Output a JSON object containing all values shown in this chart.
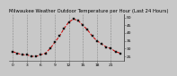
{
  "title": "Milwaukee Weather Outdoor Temperature per Hour (Last 24 Hours)",
  "hours": [
    0,
    1,
    2,
    3,
    4,
    5,
    6,
    7,
    8,
    9,
    10,
    11,
    12,
    13,
    14,
    15,
    16,
    17,
    18,
    19,
    20,
    21,
    22,
    23
  ],
  "temps": [
    28,
    27,
    26,
    26,
    25,
    25,
    26,
    27,
    30,
    34,
    38,
    43,
    47,
    49,
    48,
    45,
    42,
    38,
    35,
    33,
    31,
    30,
    28,
    27
  ],
  "line_color": "#cc0000",
  "marker_color": "#111111",
  "bg_color": "#c8c8c8",
  "plot_bg_color": "#c8c8c8",
  "grid_color": "#888888",
  "ylim_min": 22,
  "ylim_max": 52,
  "ytick_vals": [
    25,
    30,
    35,
    40,
    45,
    50
  ],
  "ytick_labels": [
    "25",
    "30",
    "35",
    "40",
    "45",
    "50"
  ],
  "xtick_vals": [
    0,
    3,
    6,
    9,
    12,
    15,
    18,
    21
  ],
  "xtick_labels": [
    "0",
    "3",
    "6",
    "9",
    "12",
    "15",
    "18",
    "21"
  ],
  "title_fontsize": 3.8,
  "tick_fontsize": 3.2,
  "linewidth": 0.7,
  "markersize": 1.8
}
